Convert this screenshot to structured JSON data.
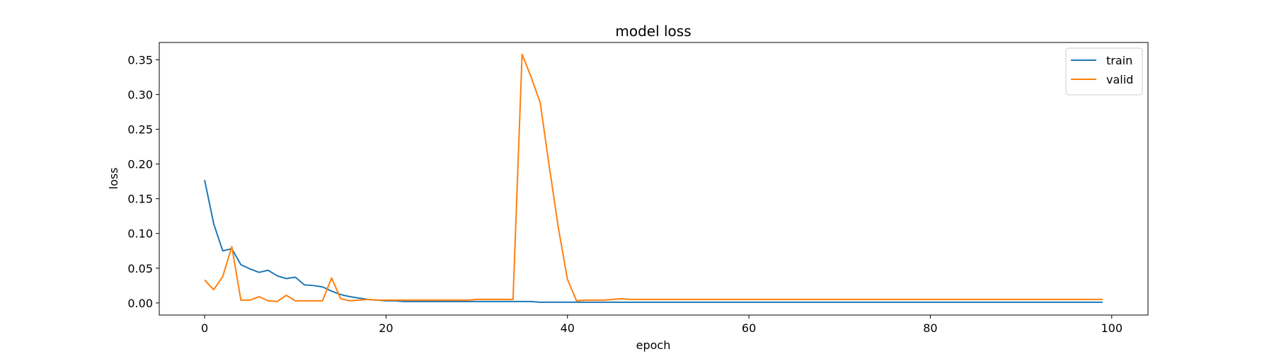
{
  "chart_data": {
    "type": "line",
    "title": "model loss",
    "xlabel": "epoch",
    "ylabel": "loss",
    "xlim": [
      -5,
      104
    ],
    "ylim": [
      -0.0175,
      0.375
    ],
    "xticks": [
      0,
      20,
      40,
      60,
      80,
      100
    ],
    "xtick_labels": [
      "0",
      "20",
      "40",
      "60",
      "80",
      "100"
    ],
    "yticks": [
      0.0,
      0.05,
      0.1,
      0.15,
      0.2,
      0.25,
      0.3,
      0.35
    ],
    "ytick_labels": [
      "0.00",
      "0.05",
      "0.10",
      "0.15",
      "0.20",
      "0.25",
      "0.30",
      "0.35"
    ],
    "grid": false,
    "legend_position": "top-right",
    "series": [
      {
        "name": "train",
        "color": "#1f77b4",
        "x": [
          0,
          1,
          2,
          3,
          4,
          5,
          6,
          7,
          8,
          9,
          10,
          11,
          12,
          13,
          14,
          15,
          16,
          17,
          18,
          19,
          20,
          21,
          22,
          23,
          24,
          25,
          26,
          27,
          28,
          29,
          30,
          31,
          32,
          33,
          34,
          35,
          36,
          37,
          38,
          39,
          40,
          41,
          42,
          43,
          44,
          45,
          46,
          47,
          48,
          49,
          50,
          51,
          52,
          53,
          54,
          55,
          56,
          57,
          58,
          59,
          60,
          61,
          62,
          63,
          64,
          65,
          66,
          67,
          68,
          69,
          70,
          71,
          72,
          73,
          74,
          75,
          76,
          77,
          78,
          79,
          80,
          81,
          82,
          83,
          84,
          85,
          86,
          87,
          88,
          89,
          90,
          91,
          92,
          93,
          94,
          95,
          96,
          97,
          98,
          99
        ],
        "values": [
          0.177,
          0.114,
          0.075,
          0.078,
          0.055,
          0.049,
          0.044,
          0.047,
          0.039,
          0.035,
          0.037,
          0.026,
          0.025,
          0.023,
          0.017,
          0.012,
          0.009,
          0.007,
          0.005,
          0.004,
          0.003,
          0.003,
          0.002,
          0.002,
          0.002,
          0.002,
          0.002,
          0.002,
          0.002,
          0.002,
          0.002,
          0.002,
          0.002,
          0.002,
          0.002,
          0.002,
          0.002,
          0.001,
          0.001,
          0.001,
          0.001,
          0.001,
          0.001,
          0.001,
          0.001,
          0.001,
          0.001,
          0.001,
          0.001,
          0.001,
          0.001,
          0.001,
          0.001,
          0.001,
          0.001,
          0.001,
          0.001,
          0.001,
          0.001,
          0.001,
          0.001,
          0.001,
          0.001,
          0.001,
          0.001,
          0.001,
          0.001,
          0.001,
          0.001,
          0.001,
          0.001,
          0.001,
          0.001,
          0.001,
          0.001,
          0.001,
          0.001,
          0.001,
          0.001,
          0.001,
          0.001,
          0.001,
          0.001,
          0.001,
          0.001,
          0.001,
          0.001,
          0.001,
          0.001,
          0.001,
          0.001,
          0.001,
          0.001,
          0.001,
          0.001,
          0.001,
          0.001,
          0.001,
          0.001,
          0.001
        ]
      },
      {
        "name": "valid",
        "color": "#ff7f0e",
        "x": [
          0,
          1,
          2,
          3,
          4,
          5,
          6,
          7,
          8,
          9,
          10,
          11,
          12,
          13,
          14,
          15,
          16,
          17,
          18,
          19,
          20,
          21,
          22,
          23,
          24,
          25,
          26,
          27,
          28,
          29,
          30,
          31,
          32,
          33,
          34,
          35,
          36,
          37,
          38,
          39,
          40,
          41,
          42,
          43,
          44,
          45,
          46,
          47,
          48,
          49,
          50,
          51,
          52,
          53,
          54,
          55,
          56,
          57,
          58,
          59,
          60,
          61,
          62,
          63,
          64,
          65,
          66,
          67,
          68,
          69,
          70,
          71,
          72,
          73,
          74,
          75,
          76,
          77,
          78,
          79,
          80,
          81,
          82,
          83,
          84,
          85,
          86,
          87,
          88,
          89,
          90,
          91,
          92,
          93,
          94,
          95,
          96,
          97,
          98,
          99
        ],
        "values": [
          0.033,
          0.019,
          0.038,
          0.081,
          0.004,
          0.004,
          0.009,
          0.003,
          0.002,
          0.011,
          0.003,
          0.003,
          0.003,
          0.003,
          0.036,
          0.006,
          0.003,
          0.004,
          0.005,
          0.004,
          0.004,
          0.004,
          0.004,
          0.004,
          0.004,
          0.004,
          0.004,
          0.004,
          0.004,
          0.004,
          0.005,
          0.005,
          0.005,
          0.005,
          0.005,
          0.358,
          0.325,
          0.288,
          0.196,
          0.108,
          0.034,
          0.003,
          0.004,
          0.004,
          0.004,
          0.005,
          0.006,
          0.005,
          0.005,
          0.005,
          0.005,
          0.005,
          0.005,
          0.005,
          0.005,
          0.005,
          0.005,
          0.005,
          0.005,
          0.005,
          0.005,
          0.005,
          0.005,
          0.005,
          0.005,
          0.005,
          0.005,
          0.005,
          0.005,
          0.005,
          0.005,
          0.005,
          0.005,
          0.005,
          0.005,
          0.005,
          0.005,
          0.005,
          0.005,
          0.005,
          0.005,
          0.005,
          0.005,
          0.005,
          0.005,
          0.005,
          0.005,
          0.005,
          0.005,
          0.005,
          0.005,
          0.005,
          0.005,
          0.005,
          0.005,
          0.005,
          0.005,
          0.005,
          0.005,
          0.005
        ]
      }
    ]
  }
}
